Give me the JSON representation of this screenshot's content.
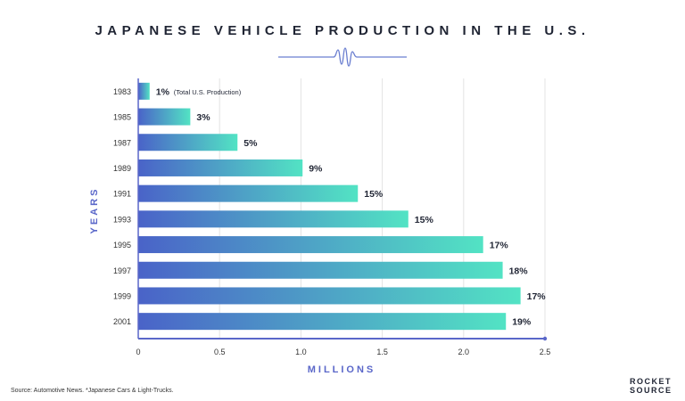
{
  "chart_data": {
    "type": "bar",
    "orientation": "horizontal",
    "title": "JAPANESE VEHICLE PRODUCTION IN THE U.S.",
    "xlabel": "MILLIONS",
    "ylabel": "YEARS",
    "xlim": [
      0,
      2.5
    ],
    "xticks": [
      "0",
      "0.5",
      "1.0",
      "1.5",
      "2.0",
      "2.5"
    ],
    "xtick_values": [
      0,
      0.5,
      1.0,
      1.5,
      2.0,
      2.5
    ],
    "grid": true,
    "categories": [
      "1983",
      "1985",
      "1987",
      "1989",
      "1991",
      "1993",
      "1995",
      "1997",
      "1999",
      "2001"
    ],
    "values": [
      0.07,
      0.32,
      0.61,
      1.01,
      1.35,
      1.66,
      2.12,
      2.24,
      2.35,
      2.26
    ],
    "data_labels": [
      "1%",
      "3%",
      "5%",
      "9%",
      "15%",
      "15%",
      "17%",
      "18%",
      "17%",
      "19%"
    ],
    "annotations": [
      "(Total U.S. Production)"
    ],
    "colors": {
      "bar_start": "#4a63c8",
      "bar_end": "#52e3c4",
      "axis": "#5a67c9",
      "label": "#1f2433"
    }
  },
  "footer": {
    "source": "Source: Automotive News. *Japanese Cars & Light-Trucks.",
    "logo_line1": "ROCKET",
    "logo_line2": "SOURCE"
  }
}
